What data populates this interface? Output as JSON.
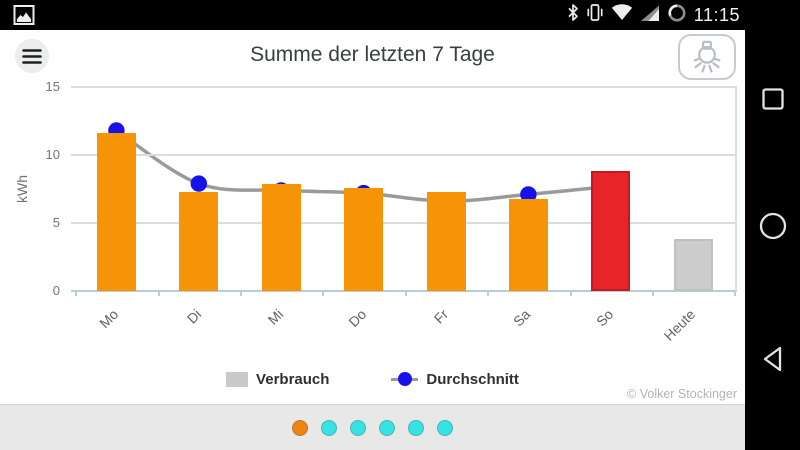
{
  "status_bar": {
    "time": "11:15",
    "icons": [
      "screenshot-icon",
      "bluetooth-icon",
      "vibrate-icon",
      "wifi-icon",
      "cell-signal-icon",
      "battery-circle-icon"
    ]
  },
  "header": {
    "title": "Summe der letzten 7 Tage",
    "menu_icon": "hamburger-icon",
    "action_icon": "light-bulb-icon"
  },
  "chart_data": {
    "type": "bar",
    "title": "Summe der letzten 7 Tage",
    "xlabel": "",
    "ylabel": "kWh",
    "categories": [
      "Mo",
      "Di",
      "Mi",
      "Do",
      "Fr",
      "Sa",
      "So",
      "Heute"
    ],
    "series": [
      {
        "name": "Verbrauch",
        "type": "bar",
        "values": [
          11.6,
          7.3,
          7.9,
          7.6,
          7.3,
          6.8,
          8.8,
          3.8
        ],
        "colors": [
          "#f79306",
          "#f79306",
          "#f79306",
          "#f79306",
          "#f79306",
          "#f79306",
          "#e92428",
          "#cccccc"
        ]
      },
      {
        "name": "Durchschnitt",
        "type": "line",
        "values": [
          11.8,
          7.9,
          7.4,
          7.2,
          6.6,
          7.1,
          7.7,
          null
        ],
        "line_color": "#9a9a9a",
        "marker_color": "#1612ea"
      }
    ],
    "ylim": [
      0,
      15
    ],
    "yticks": [
      0,
      5,
      10,
      15
    ],
    "grid": true,
    "legend_position": "bottom"
  },
  "legend": {
    "items": [
      {
        "label": "Verbrauch",
        "swatch": "gray-bar"
      },
      {
        "label": "Durchschnitt",
        "swatch": "blue-marker"
      }
    ]
  },
  "footer": {
    "copyright": "© Volker Stockinger"
  },
  "pager": {
    "count": 6,
    "active_index": 0,
    "active_color": "#f0830f",
    "inactive_color": "#35e3e3"
  },
  "nav_bar": {
    "icons": [
      "recents-square-icon",
      "home-circle-icon",
      "back-triangle-icon"
    ]
  }
}
